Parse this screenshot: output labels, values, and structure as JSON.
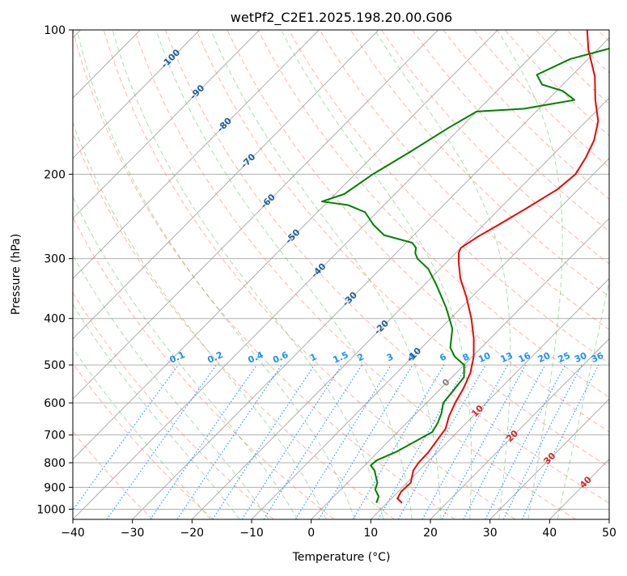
{
  "chart_data": {
    "type": "line",
    "subtype": "skew-T log-P diagram",
    "title": "wetPf2_C2E1.2025.198.20.00.G06",
    "xlabel": "Temperature (°C)",
    "ylabel": "Pressure (hPa)",
    "xlim": [
      -40,
      50
    ],
    "ylim": [
      1050,
      100
    ],
    "y_scale": "log",
    "grid": true,
    "x_ticks": [
      -40,
      -30,
      -20,
      -10,
      0,
      10,
      20,
      30,
      40,
      50
    ],
    "y_ticks": [
      100,
      200,
      300,
      400,
      500,
      600,
      700,
      800,
      900,
      1000
    ],
    "series": [
      {
        "role": "temperature",
        "color": "#e8080a",
        "points": [
          {
            "p": 970,
            "t": 12.5
          },
          {
            "p": 950,
            "t": 11.0
          },
          {
            "p": 920,
            "t": 10.5
          },
          {
            "p": 880,
            "t": 10.6
          },
          {
            "p": 830,
            "t": 9.0
          },
          {
            "p": 800,
            "t": 8.6
          },
          {
            "p": 760,
            "t": 8.5
          },
          {
            "p": 720,
            "t": 8.0
          },
          {
            "p": 680,
            "t": 7.5
          },
          {
            "p": 640,
            "t": 6.0
          },
          {
            "p": 600,
            "t": 4.8
          },
          {
            "p": 560,
            "t": 3.8
          },
          {
            "p": 520,
            "t": 2.4
          },
          {
            "p": 480,
            "t": 0.2
          },
          {
            "p": 440,
            "t": -2.8
          },
          {
            "p": 400,
            "t": -6.5
          },
          {
            "p": 360,
            "t": -11.0
          },
          {
            "p": 330,
            "t": -15.0
          },
          {
            "p": 305,
            "t": -18.0
          },
          {
            "p": 292,
            "t": -19.5
          },
          {
            "p": 285,
            "t": -20.0
          },
          {
            "p": 270,
            "t": -19.0
          },
          {
            "p": 255,
            "t": -17.5
          },
          {
            "p": 235,
            "t": -15.5
          },
          {
            "p": 215,
            "t": -13.5
          },
          {
            "p": 200,
            "t": -13.0
          },
          {
            "p": 185,
            "t": -14.0
          },
          {
            "p": 170,
            "t": -15.5
          },
          {
            "p": 155,
            "t": -18.0
          },
          {
            "p": 140,
            "t": -22.0
          },
          {
            "p": 125,
            "t": -26.0
          },
          {
            "p": 110,
            "t": -31.5
          },
          {
            "p": 100,
            "t": -35.0
          }
        ]
      },
      {
        "role": "dewpoint",
        "color": "#008000",
        "points": [
          {
            "p": 970,
            "t": 8.2
          },
          {
            "p": 940,
            "t": 7.5
          },
          {
            "p": 910,
            "t": 5.8
          },
          {
            "p": 880,
            "t": 5.0
          },
          {
            "p": 850,
            "t": 3.5
          },
          {
            "p": 830,
            "t": 2.5
          },
          {
            "p": 810,
            "t": 1.0
          },
          {
            "p": 790,
            "t": 1.2
          },
          {
            "p": 760,
            "t": 3.0
          },
          {
            "p": 720,
            "t": 4.6
          },
          {
            "p": 690,
            "t": 5.8
          },
          {
            "p": 660,
            "t": 5.2
          },
          {
            "p": 630,
            "t": 4.2
          },
          {
            "p": 600,
            "t": 2.8
          },
          {
            "p": 570,
            "t": 2.5
          },
          {
            "p": 530,
            "t": 2.0
          },
          {
            "p": 500,
            "t": 0.0
          },
          {
            "p": 480,
            "t": -3.0
          },
          {
            "p": 460,
            "t": -5.2
          },
          {
            "p": 420,
            "t": -8.0
          },
          {
            "p": 380,
            "t": -12.5
          },
          {
            "p": 340,
            "t": -18.0
          },
          {
            "p": 315,
            "t": -22.0
          },
          {
            "p": 300,
            "t": -25.5
          },
          {
            "p": 292,
            "t": -26.8
          },
          {
            "p": 285,
            "t": -27.5
          },
          {
            "p": 278,
            "t": -29.0
          },
          {
            "p": 268,
            "t": -35.0
          },
          {
            "p": 255,
            "t": -38.5
          },
          {
            "p": 240,
            "t": -42.0
          },
          {
            "p": 232,
            "t": -46.0
          },
          {
            "p": 228,
            "t": -51.0
          },
          {
            "p": 220,
            "t": -48.5
          },
          {
            "p": 200,
            "t": -47.0
          },
          {
            "p": 180,
            "t": -44.5
          },
          {
            "p": 160,
            "t": -42.0
          },
          {
            "p": 148,
            "t": -40.0
          },
          {
            "p": 146,
            "t": -32.5
          },
          {
            "p": 140,
            "t": -25.5
          },
          {
            "p": 134,
            "t": -29.0
          },
          {
            "p": 130,
            "t": -33.5
          },
          {
            "p": 124,
            "t": -36.0
          },
          {
            "p": 115,
            "t": -33.0
          },
          {
            "p": 108,
            "t": -27.0
          },
          {
            "p": 100,
            "t": -18.0
          }
        ]
      }
    ],
    "reference_lines": {
      "skewed_isotherms": {
        "color": "#a0a0a0"
      },
      "dry_adiabats": {
        "color": "#f08060",
        "style": "dashed"
      },
      "moist_adiabats": {
        "color": "#50b050",
        "style": "dashed"
      },
      "mixing_ratio": {
        "color": "#1e90ff",
        "style": "dotted"
      }
    },
    "isotherm_labels": {
      "color": "#1f5fa0",
      "items": [
        {
          "text": "-100",
          "p": 115
        },
        {
          "text": "-90",
          "p": 135
        },
        {
          "text": "-80",
          "p": 158
        },
        {
          "text": "-70",
          "p": 188
        },
        {
          "text": "-60",
          "p": 228
        },
        {
          "text": "-50",
          "p": 270
        },
        {
          "text": "-40",
          "p": 318
        },
        {
          "text": "-30",
          "p": 365
        },
        {
          "text": "-20",
          "p": 418
        },
        {
          "text": "-10",
          "p": 477
        }
      ]
    },
    "mixing_ratio_labels": {
      "color": "#1e90ff",
      "p": 500,
      "items": [
        "0.1",
        "0.2",
        "0.4",
        "0.6",
        "1",
        "1.5",
        "2",
        "3",
        "4",
        "6",
        "8",
        "10",
        "13",
        "16",
        "20",
        "25",
        "30",
        "36"
      ]
    },
    "warm_isotherm_labels": {
      "items": [
        {
          "text": "0",
          "color": "#808080",
          "p": 545
        },
        {
          "text": "10",
          "color": "#d62728",
          "p": 625
        },
        {
          "text": "20",
          "color": "#d62728",
          "p": 705
        },
        {
          "text": "30",
          "color": "#d62728",
          "p": 785
        },
        {
          "text": "40",
          "color": "#d62728",
          "p": 880
        }
      ]
    }
  }
}
